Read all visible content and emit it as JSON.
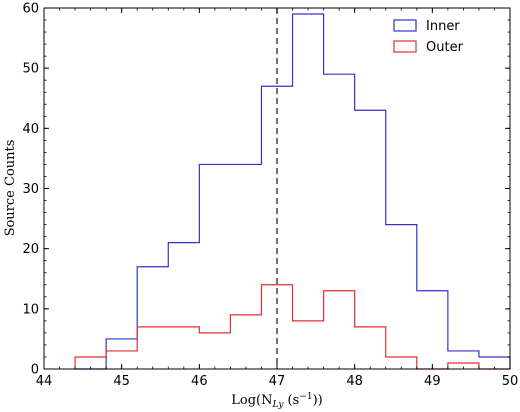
{
  "chart_data": {
    "type": "histogram",
    "xlabel_main": "Log(N",
    "xlabel_sub": "Ly",
    "xlabel_tail": " (s",
    "xlabel_sup": "−1",
    "xlabel_end": "))",
    "ylabel": "Source Counts",
    "xlim": [
      44,
      50
    ],
    "ylim": [
      0,
      60
    ],
    "xticks": [
      44,
      45,
      46,
      47,
      48,
      49,
      50
    ],
    "yticks": [
      0,
      10,
      20,
      30,
      40,
      50,
      60
    ],
    "bin_edges": [
      44.4,
      44.8,
      45.2,
      45.6,
      46.0,
      46.4,
      46.8,
      47.2,
      47.6,
      48.0,
      48.4,
      48.8,
      49.2,
      49.6,
      50.0
    ],
    "series": [
      {
        "name": "Inner",
        "color": "#3333cc",
        "values": [
          0,
          5,
          17,
          21,
          34,
          34,
          47,
          59,
          49,
          43,
          24,
          13,
          3,
          2
        ]
      },
      {
        "name": "Outer",
        "color": "#e03030",
        "values": [
          2,
          3,
          7,
          7,
          6,
          9,
          14,
          8,
          13,
          7,
          2,
          0,
          1,
          0
        ]
      }
    ],
    "vline": {
      "x": 47,
      "style": "dashed",
      "color": "#444444"
    },
    "legend": {
      "placement": "top-right",
      "entries": [
        "Inner",
        "Outer"
      ]
    },
    "grid": false
  }
}
